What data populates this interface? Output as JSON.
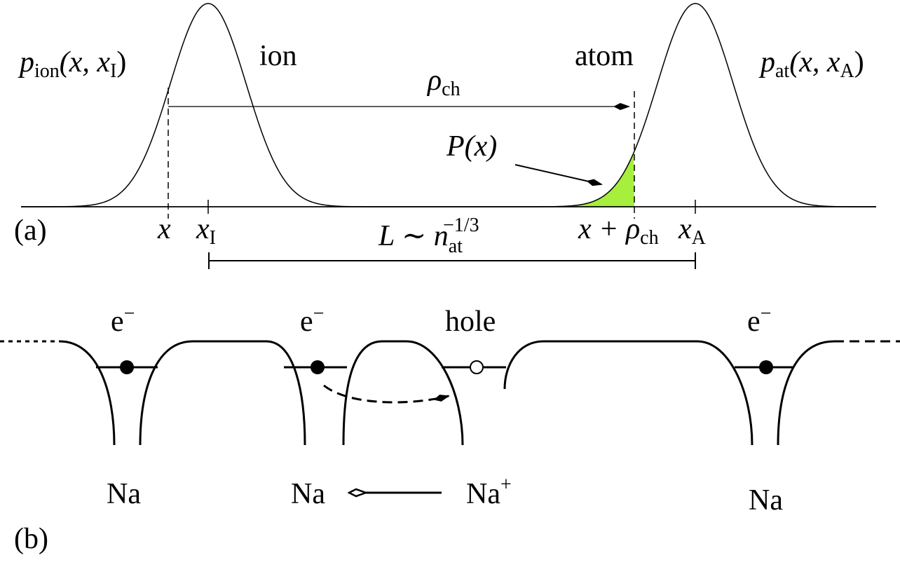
{
  "panel_a": {
    "label": "(a)",
    "p_ion": [
      "p",
      "ion",
      "(x, x",
      "I",
      ")"
    ],
    "ion": "ion",
    "atom": "atom",
    "p_at": [
      "p",
      "at",
      "(x, x",
      "A",
      ")"
    ],
    "rho_ch": [
      "ρ",
      "ch"
    ],
    "P": "P(x)",
    "x": "x",
    "x_I": [
      "x",
      "I"
    ],
    "L": [
      "L ∼ n",
      "at",
      "−1/3"
    ],
    "x_rho": [
      "x + ρ",
      "ch"
    ],
    "x_A": [
      "x",
      "A"
    ]
  },
  "panel_b": {
    "label": "(b)",
    "electrons": [
      [
        "e",
        "−"
      ],
      [
        "e",
        "−"
      ],
      [
        "e",
        "−"
      ]
    ],
    "hole": "hole",
    "atoms": [
      "Na",
      "Na",
      [
        "Na",
        "+"
      ],
      "Na"
    ]
  }
}
